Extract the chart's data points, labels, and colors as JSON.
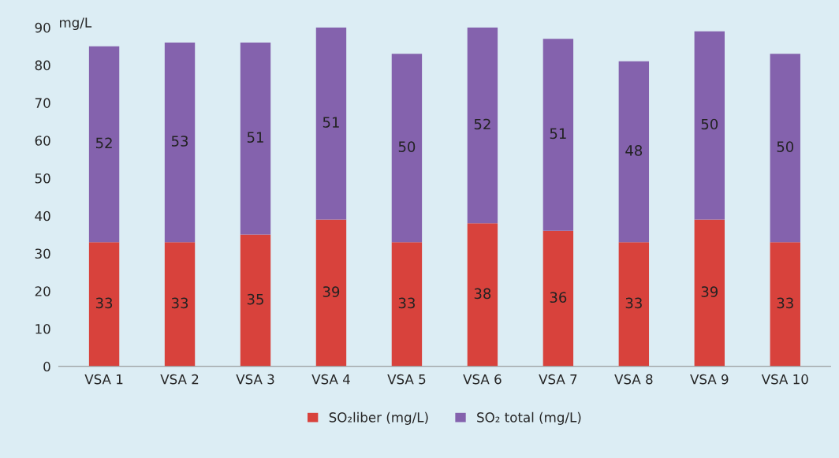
{
  "chart_data": {
    "type": "bar",
    "stacked": true,
    "ylabel": "mg/L",
    "categories": [
      "VSA 1",
      "VSA 2",
      "VSA 3",
      "VSA 4",
      "VSA 5",
      "VSA 6",
      "VSA 7",
      "VSA 8",
      "VSA 9",
      "VSA 10"
    ],
    "series": [
      {
        "name": "SO₂liber (mg/L)",
        "color": "#d8423c",
        "values": [
          33,
          33,
          35,
          39,
          33,
          38,
          36,
          33,
          39,
          33
        ]
      },
      {
        "name": "SO₂ total (mg/L)",
        "color": "#8462ad",
        "values": [
          52,
          53,
          51,
          51,
          50,
          52,
          51,
          48,
          50,
          50
        ]
      }
    ],
    "ylim": [
      0,
      90
    ],
    "yticks": [
      0,
      10,
      20,
      30,
      40,
      50,
      60,
      70,
      80,
      90
    ],
    "data_labels": true,
    "grid": false,
    "legend": "bottom"
  }
}
